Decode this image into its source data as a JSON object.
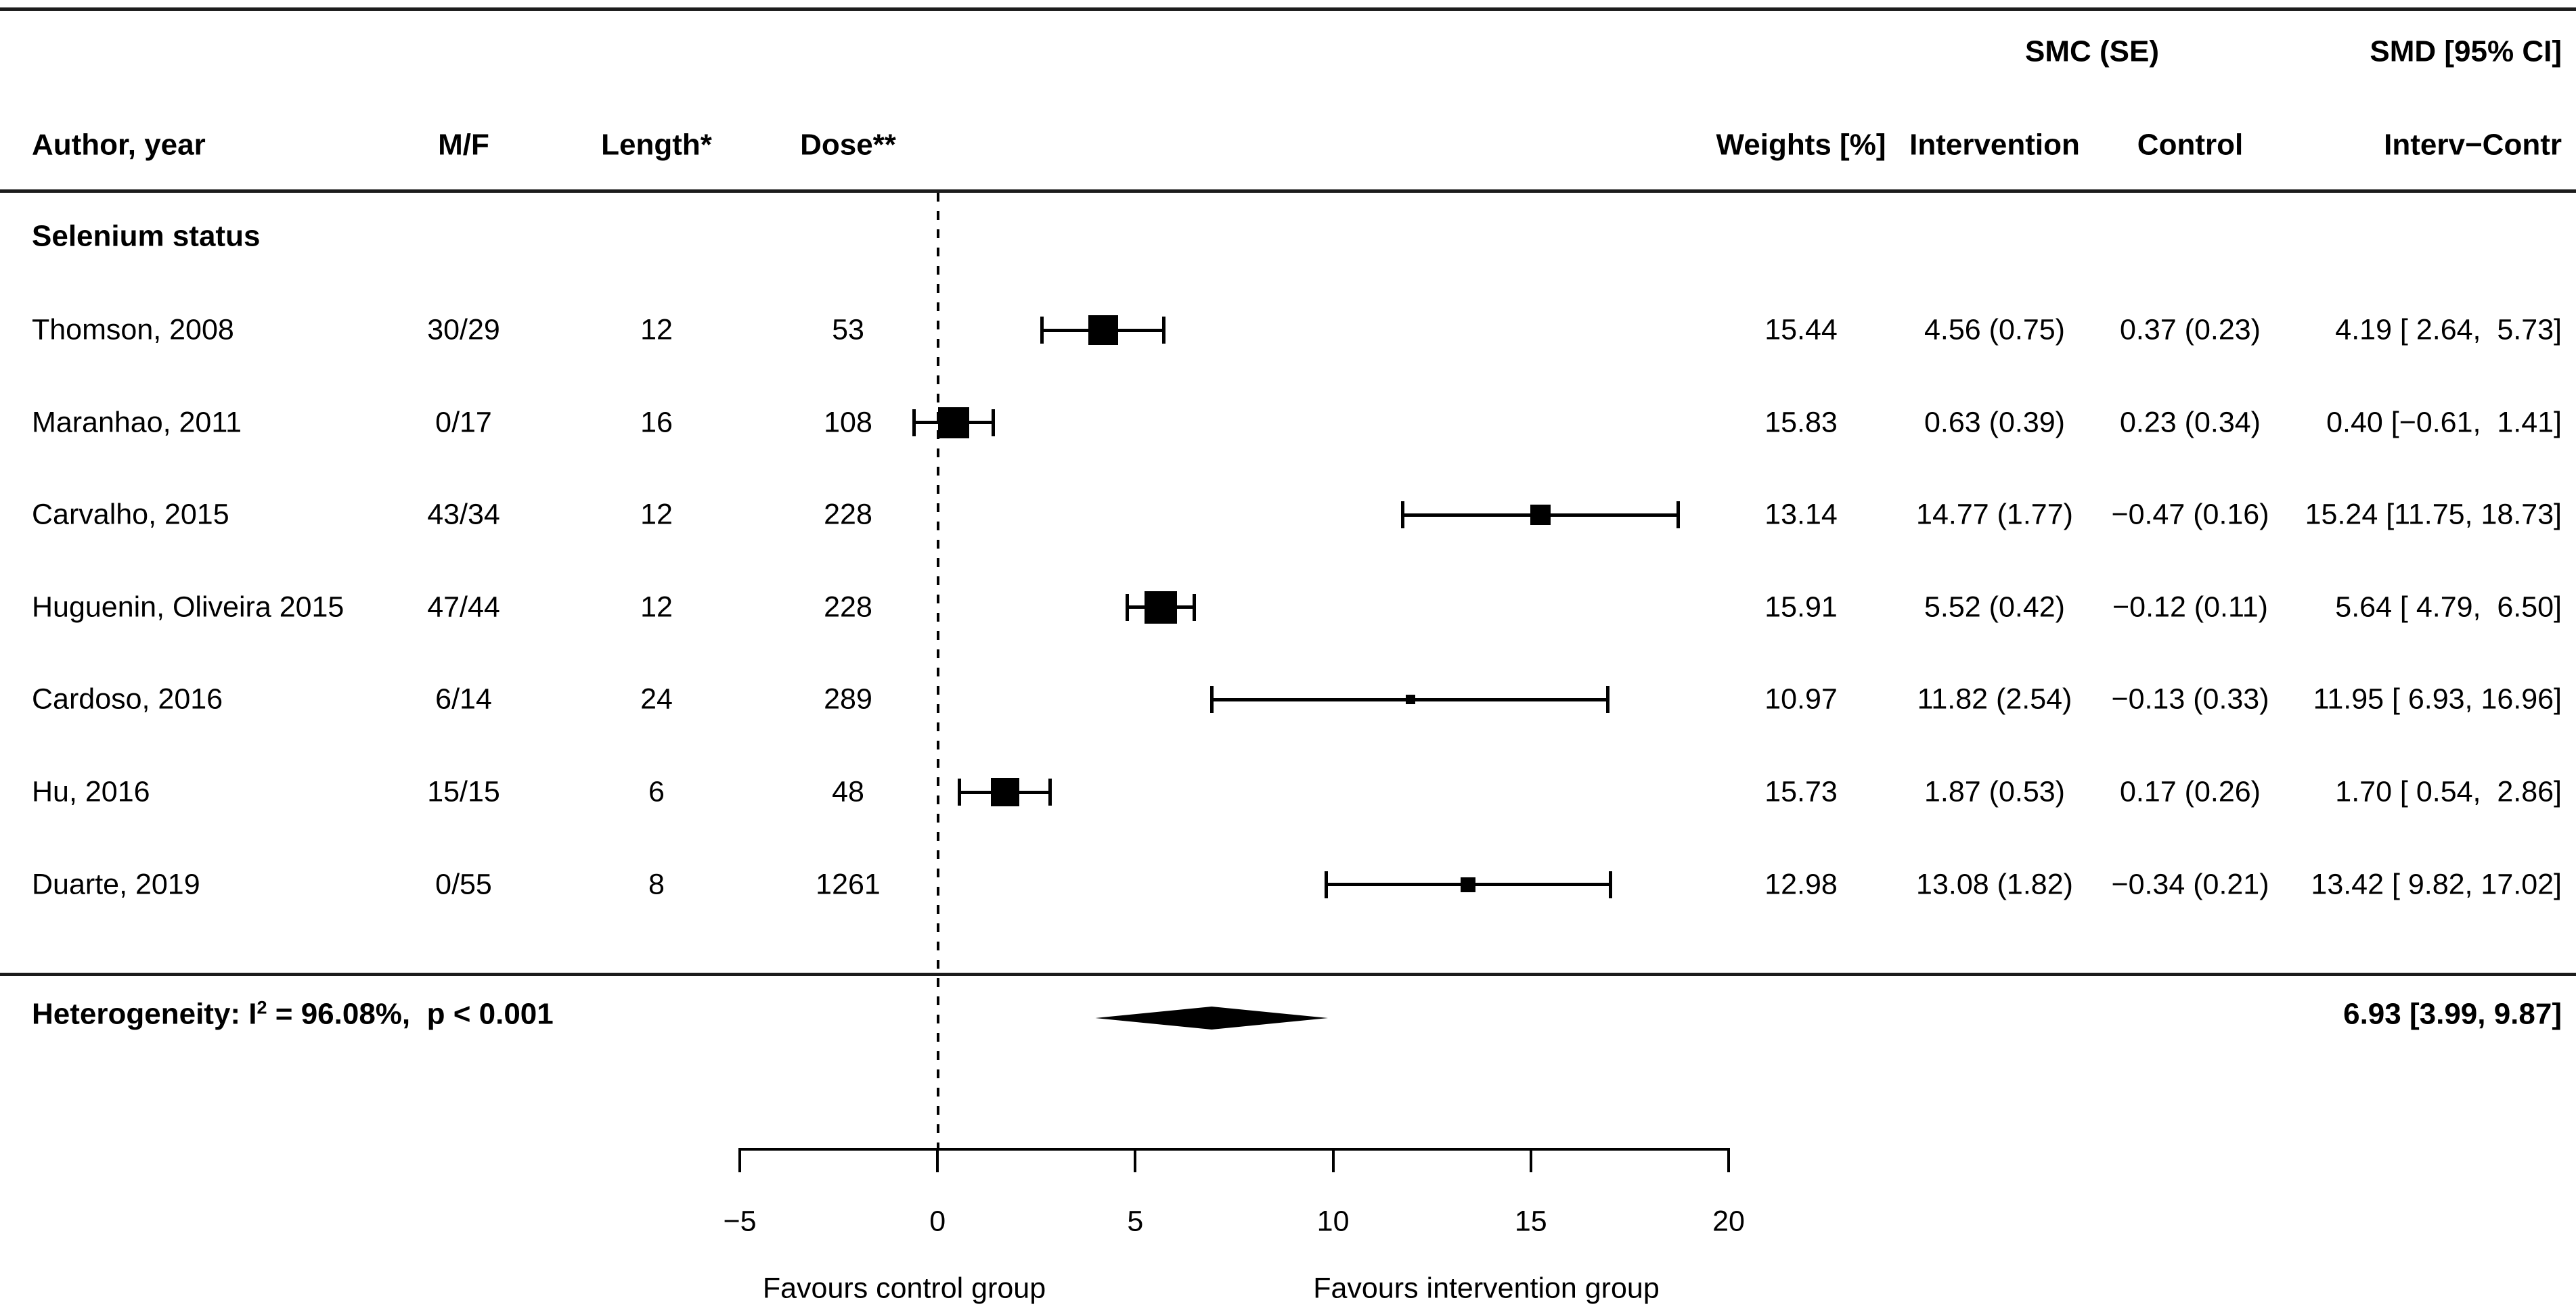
{
  "title_headers": {
    "smc_se": "SMC (SE)",
    "smd_ci": "SMD [95% CI]"
  },
  "columns": {
    "author": "Author, year",
    "mf": "M/F",
    "length": "Length*",
    "dose": "Dose**",
    "weights": "Weights [%]",
    "intervention": "Intervention",
    "control": "Control",
    "interv_contr": "Interv−Contr"
  },
  "section_label": "Selenium status",
  "heterogeneity": {
    "prefix": "Heterogeneity: I",
    "sup": "2",
    "rest": " = 96.08%,  p < 0.001"
  },
  "summary_smd_label": "6.93 [3.99, 9.87]",
  "axis": {
    "tick_labels": [
      "−5",
      "0",
      "5",
      "10",
      "15",
      "20"
    ],
    "favours_left": "Favours control group",
    "favours_right": "Favours intervention group"
  },
  "chart_data": {
    "type": "forest",
    "title": "",
    "xlabel_left": "Favours control group",
    "xlabel_right": "Favours intervention group",
    "x_range": [
      -5,
      20
    ],
    "axis_ticks": [
      -5,
      0,
      5,
      10,
      15,
      20
    ],
    "zero_line": 0,
    "grid": false,
    "group_header_left": "SMC (SE)",
    "group_header_right": "SMD [95% CI]",
    "section": "Selenium status",
    "studies": [
      {
        "author": "Thomson, 2008",
        "mf": "30/29",
        "length": "12",
        "dose": "53",
        "weight": "15.44",
        "smc_intervention": "4.56 (0.75)",
        "smc_control": "0.37 (0.23)",
        "smd": 4.19,
        "ci_low": 2.64,
        "ci_high": 5.73,
        "smd_label": "4.19 [ 2.64,  5.73]",
        "marker_px": 44
      },
      {
        "author": "Maranhao, 2011",
        "mf": "0/17",
        "length": "16",
        "dose": "108",
        "weight": "15.83",
        "smc_intervention": "0.63 (0.39)",
        "smc_control": "0.23 (0.34)",
        "smd": 0.4,
        "ci_low": -0.61,
        "ci_high": 1.41,
        "smd_label": "0.40 [−0.61,  1.41]",
        "marker_px": 46
      },
      {
        "author": "Carvalho, 2015",
        "mf": "43/34",
        "length": "12",
        "dose": "228",
        "weight": "13.14",
        "smc_intervention": "14.77 (1.77)",
        "smc_control": "−0.47 (0.16)",
        "smd": 15.24,
        "ci_low": 11.75,
        "ci_high": 18.73,
        "smd_label": "15.24 [11.75, 18.73]",
        "marker_px": 30
      },
      {
        "author": "Huguenin, Oliveira 2015",
        "mf": "47/44",
        "length": "12",
        "dose": "228",
        "weight": "15.91",
        "smc_intervention": "5.52 (0.42)",
        "smc_control": "−0.12 (0.11)",
        "smd": 5.64,
        "ci_low": 4.79,
        "ci_high": 6.5,
        "smd_label": "5.64 [ 4.79,  6.50]",
        "marker_px": 48
      },
      {
        "author": "Cardoso, 2016",
        "mf": "6/14",
        "length": "24",
        "dose": "289",
        "weight": "10.97",
        "smc_intervention": "11.82 (2.54)",
        "smc_control": "−0.13 (0.33)",
        "smd": 11.95,
        "ci_low": 6.93,
        "ci_high": 16.96,
        "smd_label": "11.95 [ 6.93, 16.96]",
        "marker_px": 14
      },
      {
        "author": "Hu, 2016",
        "mf": "15/15",
        "length": "6",
        "dose": "48",
        "weight": "15.73",
        "smc_intervention": "1.87 (0.53)",
        "smc_control": "0.17 (0.26)",
        "smd": 1.7,
        "ci_low": 0.54,
        "ci_high": 2.86,
        "smd_label": "1.70 [ 0.54,  2.86]",
        "marker_px": 42
      },
      {
        "author": "Duarte, 2019",
        "mf": "0/55",
        "length": "8",
        "dose": "1261",
        "weight": "12.98",
        "smc_intervention": "13.08 (1.82)",
        "smc_control": "−0.34 (0.21)",
        "smd": 13.42,
        "ci_low": 9.82,
        "ci_high": 17.02,
        "smd_label": "13.42 [ 9.82, 17.02]",
        "marker_px": 22
      }
    ],
    "summary": {
      "smd": 6.93,
      "ci_low": 3.99,
      "ci_high": 9.87,
      "label": "6.93 [3.99, 9.87]",
      "heterogeneity_i2": "96.08%",
      "heterogeneity_p": "< 0.001"
    }
  },
  "colors": {
    "ink": "#000000",
    "rule": "#1c1c1c",
    "background": "#ffffff"
  }
}
